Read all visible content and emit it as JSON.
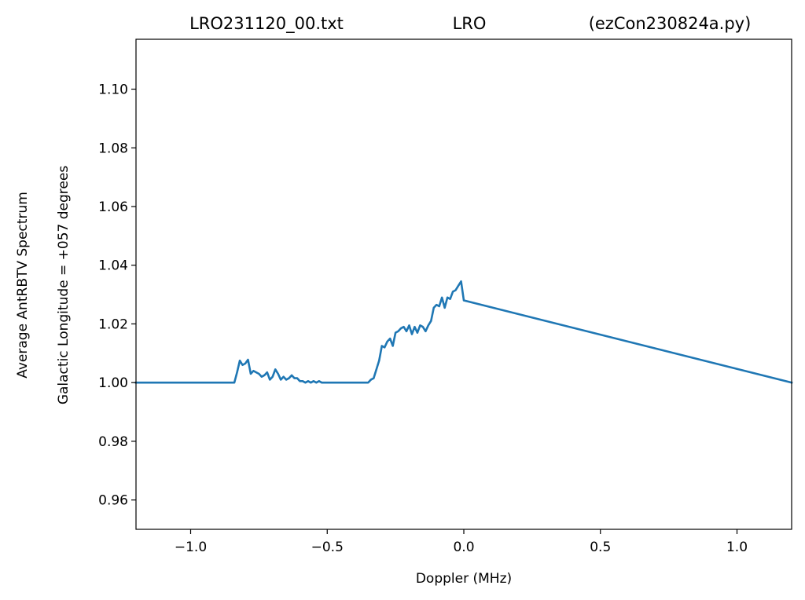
{
  "chart_data": {
    "type": "line",
    "title_parts": [
      "LRO231120_00.txt",
      "LRO",
      "(ezCon230824a.py)"
    ],
    "xlabel": "Doppler (MHz)",
    "ylabel": "Average AntRBTV Spectrum",
    "ylabel2": "Galactic Longitude = +057 degrees",
    "xlim": [
      -1.2,
      1.2
    ],
    "ylim": [
      0.95,
      1.117
    ],
    "xticks": [
      -1.0,
      -0.5,
      0.0,
      0.5,
      1.0
    ],
    "xtick_labels": [
      "−1.0",
      "−0.5",
      "0.0",
      "0.5",
      "1.0"
    ],
    "yticks": [
      0.96,
      0.98,
      1.0,
      1.02,
      1.04,
      1.06,
      1.08,
      1.1
    ],
    "ytick_labels": [
      "0.96",
      "0.98",
      "1.00",
      "1.02",
      "1.04",
      "1.06",
      "1.08",
      "1.10"
    ],
    "grid": false,
    "line_color": "#1f77b4",
    "series": [
      {
        "x": [
          -1.2,
          -0.84,
          -0.83,
          -0.82,
          -0.81,
          -0.8,
          -0.79,
          -0.78,
          -0.77,
          -0.76,
          -0.75,
          -0.74,
          -0.73,
          -0.72,
          -0.71,
          -0.7,
          -0.69,
          -0.68,
          -0.67,
          -0.66,
          -0.65,
          -0.64,
          -0.63,
          -0.62,
          -0.61,
          -0.6,
          -0.59,
          -0.58,
          -0.57,
          -0.56,
          -0.55,
          -0.54,
          -0.53,
          -0.52,
          -0.51,
          -0.5,
          -0.35,
          -0.34,
          -0.33,
          -0.32,
          -0.31,
          -0.3,
          -0.29,
          -0.28,
          -0.27,
          -0.26,
          -0.25,
          -0.24,
          -0.23,
          -0.22,
          -0.21,
          -0.2,
          -0.19,
          -0.18,
          -0.17,
          -0.16,
          -0.15,
          -0.14,
          -0.13,
          -0.12,
          -0.11,
          -0.1,
          -0.09,
          -0.08,
          -0.07,
          -0.06,
          -0.05,
          -0.04,
          -0.03,
          -0.02,
          -0.01,
          0.0,
          1.2
        ],
        "y": [
          1.0,
          1.0,
          1.0035,
          1.0075,
          1.006,
          1.0065,
          1.0078,
          1.003,
          1.004,
          1.0035,
          1.003,
          1.002,
          1.0025,
          1.0035,
          1.001,
          1.002,
          1.0045,
          1.003,
          1.001,
          1.002,
          1.001,
          1.0015,
          1.0025,
          1.0015,
          1.0015,
          1.0005,
          1.0005,
          1.0,
          1.0005,
          1.0,
          1.0005,
          1.0,
          1.0005,
          1.0,
          1.0,
          1.0,
          1.0,
          1.001,
          1.0015,
          1.0045,
          1.0075,
          1.0125,
          1.012,
          1.014,
          1.015,
          1.0125,
          1.017,
          1.0175,
          1.0185,
          1.019,
          1.0175,
          1.0195,
          1.0165,
          1.019,
          1.017,
          1.0195,
          1.019,
          1.0175,
          1.0195,
          1.021,
          1.0255,
          1.0265,
          1.026,
          1.029,
          1.0255,
          1.029,
          1.0285,
          1.031,
          1.0315,
          1.033,
          1.0345,
          1.028,
          1.0
        ]
      }
    ]
  }
}
